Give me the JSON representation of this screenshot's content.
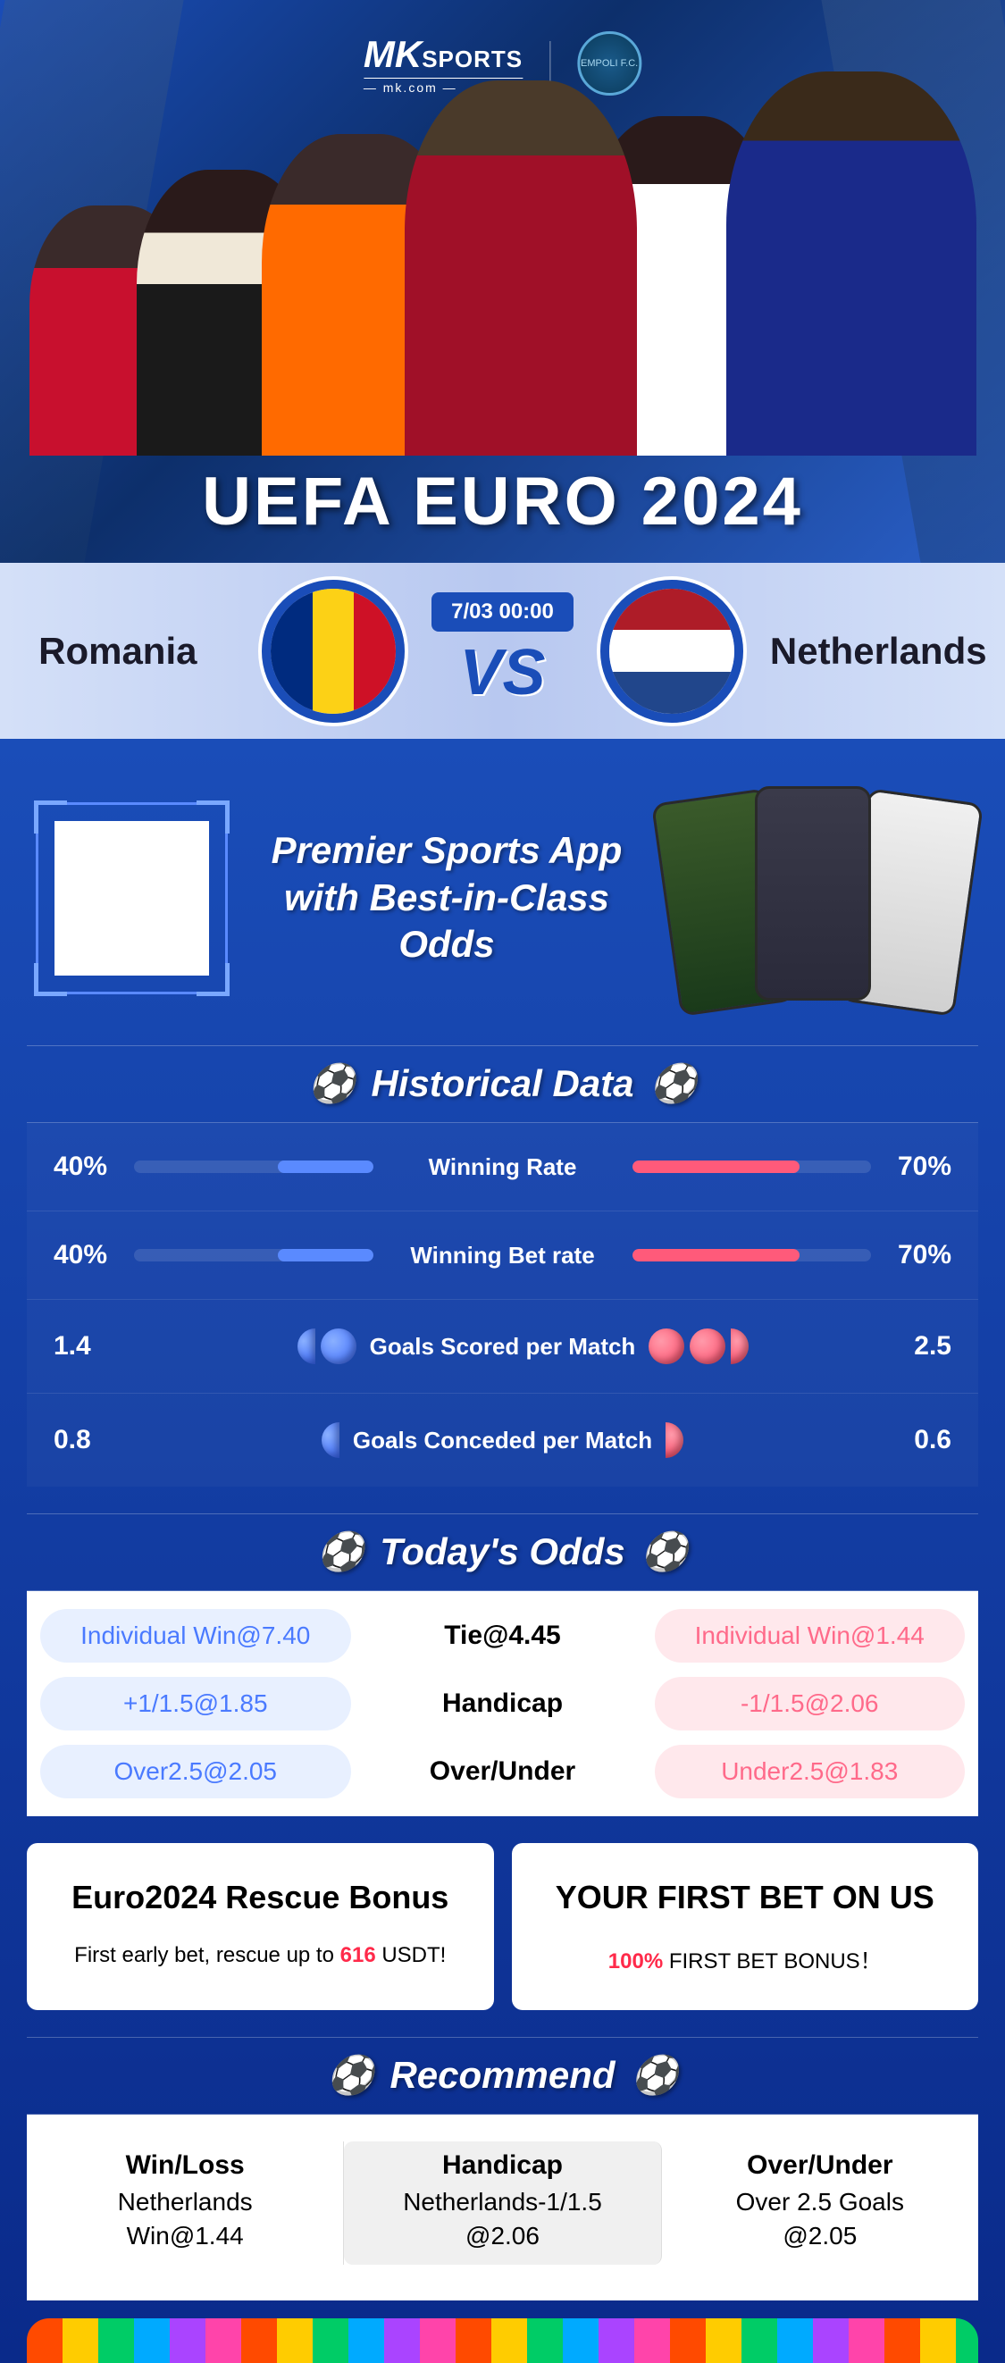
{
  "brand": {
    "mk": "MK",
    "sports": "SPORTS",
    "site": "— mk.com —",
    "club": "EMPOLI F.C."
  },
  "hero": {
    "title": "UEFA EURO 2024"
  },
  "match": {
    "home": "Romania",
    "away": "Netherlands",
    "time": "7/03 00:00",
    "vs": "VS",
    "home_flag_colors": [
      "#002b7f",
      "#fcd116",
      "#ce1126"
    ],
    "away_flag_colors": [
      "#ae1c28",
      "#ffffff",
      "#21468b"
    ]
  },
  "promo": {
    "line1": "Premier Sports App",
    "line2": "with Best-in-Class Odds"
  },
  "sections": {
    "historical": "Historical Data",
    "odds": "Today's Odds",
    "recommend": "Recommend"
  },
  "historical": [
    {
      "type": "bar",
      "label": "Winning Rate",
      "left_val": "40%",
      "right_val": "70%",
      "left_pct": 40,
      "right_pct": 70
    },
    {
      "type": "bar",
      "label": "Winning Bet rate",
      "left_val": "40%",
      "right_val": "70%",
      "left_pct": 40,
      "right_pct": 70
    },
    {
      "type": "balls",
      "label": "Goals Scored per Match",
      "left_val": "1.4",
      "right_val": "2.5",
      "left_balls": 1.4,
      "right_balls": 2.5
    },
    {
      "type": "balls",
      "label": "Goals Conceded per Match",
      "left_val": "0.8",
      "right_val": "0.6",
      "left_balls": 0.8,
      "right_balls": 0.6
    }
  ],
  "odds": [
    {
      "left": "Individual Win@7.40",
      "mid": "Tie@4.45",
      "right": "Individual Win@1.44"
    },
    {
      "left": "+1/1.5@1.85",
      "mid": "Handicap",
      "right": "-1/1.5@2.06"
    },
    {
      "left": "Over2.5@2.05",
      "mid": "Over/Under",
      "right": "Under2.5@1.83"
    }
  ],
  "bonus": [
    {
      "title": "Euro2024 Rescue Bonus",
      "sub_pre": "First early bet, rescue up to ",
      "sub_hl": "616",
      "sub_post": " USDT!"
    },
    {
      "title": "YOUR FIRST BET ON US",
      "sub_pre": "",
      "sub_hl": "100%",
      "sub_post": " FIRST BET BONUS！"
    }
  ],
  "recommend": [
    {
      "head": "Win/Loss",
      "v1": "Netherlands",
      "v2": "Win@1.44"
    },
    {
      "head": "Handicap",
      "v1": "Netherlands-1/1.5",
      "v2": "@2.06"
    },
    {
      "head": "Over/Under",
      "v1": "Over 2.5 Goals",
      "v2": "@2.05"
    }
  ],
  "colors": {
    "blue": "#5a8aff",
    "red": "#ff5a7a",
    "brand_blue": "#1a4db8"
  }
}
